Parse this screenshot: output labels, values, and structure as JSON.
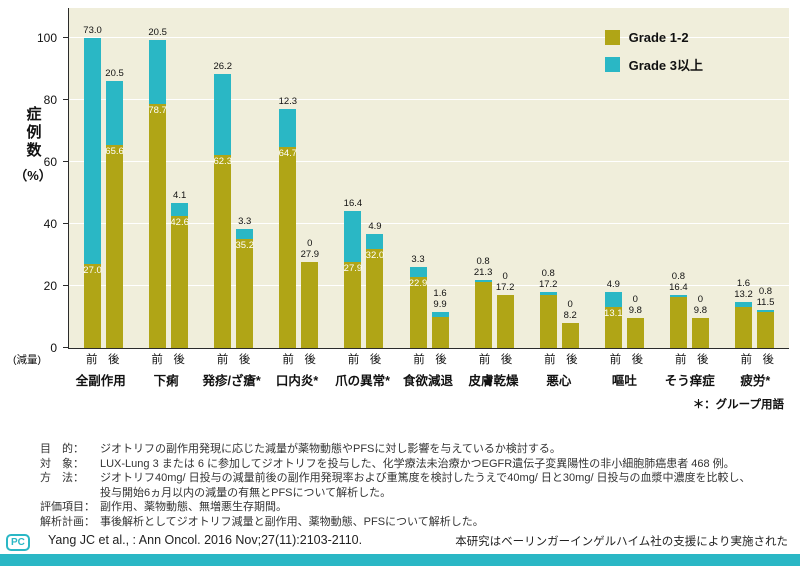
{
  "colors": {
    "grade12_olive": "#b0a516",
    "grade3_teal": "#2ab7c5",
    "plot_background": "#f0eedb",
    "accent_bar": "#2ab7c5"
  },
  "chart_data": {
    "type": "stacked-bar",
    "ylabel": "症例数（%）",
    "ylabel_chars": "症例数",
    "ylabel_unit": "（%）",
    "ylim": [
      0,
      100
    ],
    "yticks": [
      0,
      20,
      40,
      60,
      80,
      100
    ],
    "x_axis_note": "(減量)",
    "x_sub_labels": [
      "前",
      "後"
    ],
    "footnote": "＊：グループ用語",
    "legend": [
      {
        "label": "Grade 1-2",
        "color": "#b0a516"
      },
      {
        "label": "Grade 3以上",
        "color": "#2ab7c5"
      }
    ],
    "categories": [
      {
        "name": "全副作用",
        "bars": [
          {
            "g12": 27.0,
            "g12_label": "27.0",
            "g3": 73.0,
            "g3_label": "73.0",
            "white_label": true
          },
          {
            "g12": 65.6,
            "g12_label": "65.6",
            "g3": 20.5,
            "g3_label": "20.5",
            "white_label": true
          }
        ]
      },
      {
        "name": "下痢",
        "bars": [
          {
            "g12": 78.7,
            "g12_label": "78.7",
            "g3": 20.5,
            "g3_label": "20.5",
            "white_label": true
          },
          {
            "g12": 42.6,
            "g12_label": "42.6",
            "g3": 4.1,
            "g3_label": "4.1",
            "white_label": true
          }
        ]
      },
      {
        "name": "発疹/ざ瘡*",
        "bars": [
          {
            "g12": 62.3,
            "g12_label": "62.3",
            "g3": 26.2,
            "g3_label": "26.2",
            "white_label": true
          },
          {
            "g12": 35.2,
            "g12_label": "35.2",
            "g3": 3.3,
            "g3_label": "3.3",
            "white_label": true
          }
        ]
      },
      {
        "name": "口内炎*",
        "bars": [
          {
            "g12": 64.7,
            "g12_label": "64.7",
            "g3": 12.3,
            "g3_label": "12.3",
            "white_label": true
          },
          {
            "g12": 27.9,
            "g12_label": "27.9",
            "g3": 0,
            "g3_label": "0",
            "white_label": false
          }
        ]
      },
      {
        "name": "爪の異常*",
        "bars": [
          {
            "g12": 27.9,
            "g12_label": "27.9",
            "g3": 16.4,
            "g3_label": "16.4",
            "white_label": true
          },
          {
            "g12": 32.0,
            "g12_label": "32.0",
            "g3": 4.9,
            "g3_label": "4.9",
            "white_label": true
          }
        ]
      },
      {
        "name": "食欲減退",
        "bars": [
          {
            "g12": 22.9,
            "g12_label": "22.9",
            "g3": 3.3,
            "g3_label": "3.3",
            "white_label": true
          },
          {
            "g12": 9.9,
            "g12_label": "9.9",
            "g3": 1.6,
            "g3_label": "1.6",
            "white_label": false
          }
        ]
      },
      {
        "name": "皮膚乾燥",
        "bars": [
          {
            "g12": 21.3,
            "g12_label": "21.3",
            "g3": 0.8,
            "g3_label": "0.8",
            "white_label": false
          },
          {
            "g12": 17.2,
            "g12_label": "17.2",
            "g3": 0,
            "g3_label": "0",
            "white_label": false
          }
        ]
      },
      {
        "name": "悪心",
        "bars": [
          {
            "g12": 17.2,
            "g12_label": "17.2",
            "g3": 0.8,
            "g3_label": "0.8",
            "white_label": false
          },
          {
            "g12": 8.2,
            "g12_label": "8.2",
            "g3": 0,
            "g3_label": "0",
            "white_label": false
          }
        ]
      },
      {
        "name": "嘔吐",
        "bars": [
          {
            "g12": 13.1,
            "g12_label": "13.1",
            "g3": 4.9,
            "g3_label": "4.9",
            "white_label": true
          },
          {
            "g12": 9.8,
            "g12_label": "9.8",
            "g3": 0,
            "g3_label": "0",
            "white_label": false
          }
        ]
      },
      {
        "name": "そう痒症",
        "bars": [
          {
            "g12": 16.4,
            "g12_label": "16.4",
            "g3": 0.8,
            "g3_label": "0.8",
            "white_label": false
          },
          {
            "g12": 9.8,
            "g12_label": "9.8",
            "g3": 0,
            "g3_label": "0",
            "white_label": false
          }
        ]
      },
      {
        "name": "疲労*",
        "bars": [
          {
            "g12": 13.2,
            "g12_label": "13.2",
            "g3": 1.6,
            "g3_label": "1.6",
            "white_label": false
          },
          {
            "g12": 11.5,
            "g12_label": "11.5",
            "g3": 0.8,
            "g3_label": "0.8",
            "white_label": false
          }
        ]
      }
    ]
  },
  "study_info": {
    "rows": [
      {
        "label": "目　的：",
        "text": "ジオトリフの副作用発現に応じた減量が薬物動態やPFSに対し影響を与えているか検討する。"
      },
      {
        "label": "対　象：",
        "text": "LUX-Lung 3 または 6 に参加してジオトリフを投与した、化学療法未治療かつEGFR遺伝子変異陽性の非小細胞肺癌患者 468 例。"
      },
      {
        "label": "方　法：",
        "text": "ジオトリフ40mg/ 日投与の減量前後の副作用発現率および重篤度を検討したうえで40mg/ 日と30mg/ 日投与の血漿中濃度を比較し、"
      },
      {
        "label": "",
        "text": "投与開始6ヵ月以内の減量の有無とPFSについて解析した。"
      },
      {
        "label": "評価項目：",
        "text": "副作用、薬物動態、無増悪生存期間。"
      },
      {
        "label": "解析計画：",
        "text": "事後解析としてジオトリフ減量と副作用、薬物動態、PFSについて解析した。"
      }
    ]
  },
  "footer": {
    "citation": "Yang JC et al., : Ann Oncol. 2016 Nov;27(11):2103-2110.",
    "support": "本研究はベーリンガーインゲルハイム社の支援により実施された",
    "logo": "PC"
  }
}
